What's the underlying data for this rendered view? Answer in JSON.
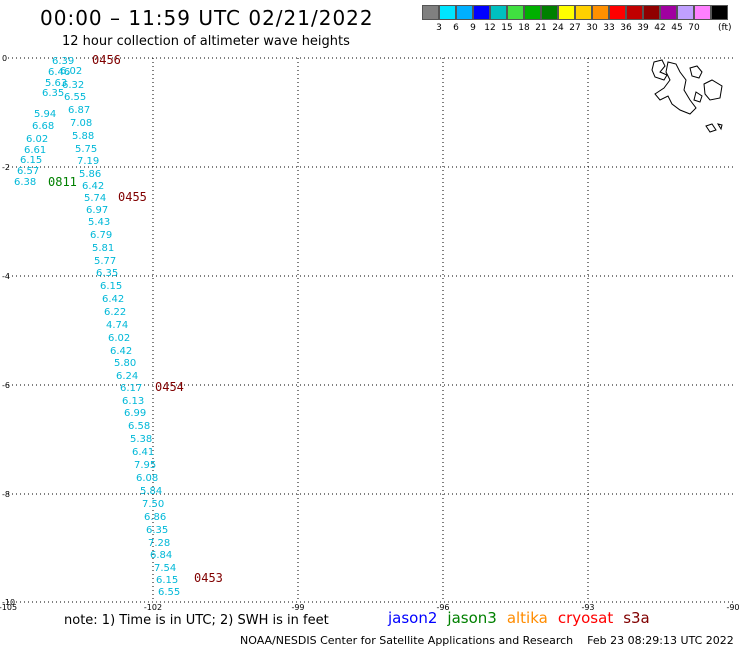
{
  "title": "00:00 – 11:59 UTC 02/21/2022",
  "subtitle": "12 hour collection of altimeter wave heights",
  "legend": {
    "colors": [
      "#808080",
      "#00e5ff",
      "#00b0ff",
      "#0000ff",
      "#00c0c0",
      "#40e040",
      "#00b000",
      "#008000",
      "#ffff00",
      "#ffd000",
      "#ff9000",
      "#ff0000",
      "#c00000",
      "#900000",
      "#a000a0",
      "#c0a0ff",
      "#ff80ff",
      "#000000"
    ],
    "labels": [
      "3",
      "6",
      "9",
      "12",
      "15",
      "18",
      "21",
      "24",
      "27",
      "30",
      "33",
      "36",
      "39",
      "42",
      "45",
      "70"
    ],
    "unit": "(ft)"
  },
  "axes": {
    "x_ticks": [
      "-105",
      "-102",
      "-99",
      "-96",
      "-93",
      "-90"
    ],
    "y_ticks": [
      "0",
      "-2",
      "-4",
      "-6",
      "-8",
      "-10"
    ]
  },
  "passes": [
    {
      "time": "0456",
      "color": "#800000"
    },
    {
      "time": "0811",
      "color": "#008000"
    },
    {
      "time": "0455",
      "color": "#800000"
    },
    {
      "time": "0454",
      "color": "#800000"
    },
    {
      "time": "0453",
      "color": "#800000"
    }
  ],
  "heights": [
    "6.39",
    "6.46",
    "6.02",
    "5.63",
    "6.32",
    "6.35",
    "6.55",
    "6.87",
    "5.94",
    "7.08",
    "6.68",
    "5.88",
    "6.02",
    "5.75",
    "6.61",
    "7.19",
    "6.15",
    "5.86",
    "6.57",
    "6.42",
    "6.38",
    "5.74",
    "6.97",
    "5.43",
    "6.79",
    "5.81",
    "5.77",
    "6.35",
    "6.15",
    "6.42",
    "6.22",
    "4.74",
    "6.02",
    "6.42",
    "5.80",
    "6.24",
    "6.17",
    "6.13",
    "6.99",
    "6.58",
    "5.38",
    "6.41",
    "7.95",
    "6.08",
    "5.84",
    "7.50",
    "6.86",
    "6.35",
    "7.28",
    "6.84",
    "7.54",
    "6.15",
    "6.55"
  ],
  "note": "note: 1) Time is in UTC; 2) SWH is in feet",
  "satellites": [
    {
      "name": "jason2",
      "color": "#0000ff"
    },
    {
      "name": "jason3",
      "color": "#008000"
    },
    {
      "name": "altika",
      "color": "#ff8c00"
    },
    {
      "name": "cryosat",
      "color": "#ff0000"
    },
    {
      "name": "s3a",
      "color": "#800000"
    }
  ],
  "footer": {
    "credit": "NOAA/NESDIS Center for Satellite Applications and Research",
    "timestamp": "Feb 23 08:29:13 UTC 2022"
  }
}
